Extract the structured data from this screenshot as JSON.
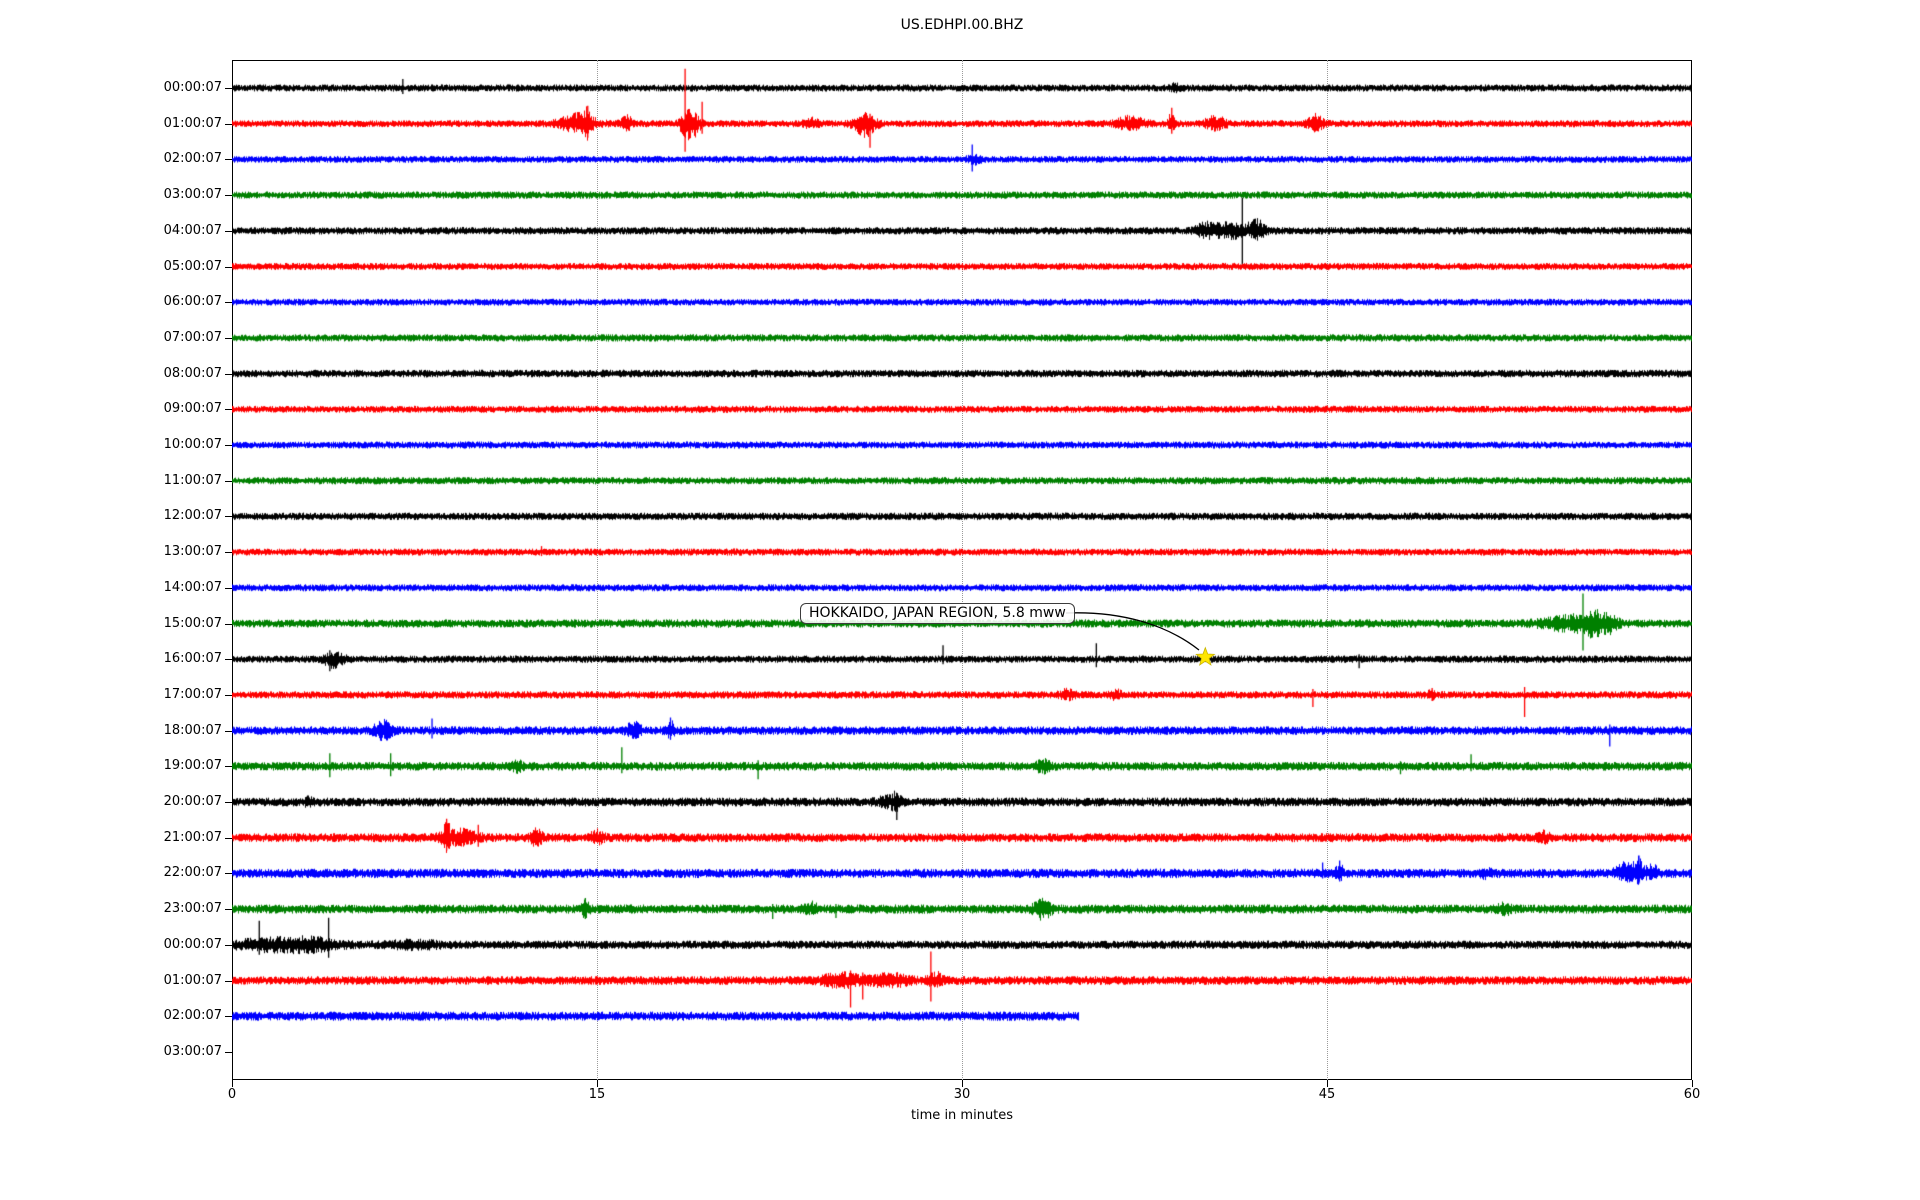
{
  "title": "US.EDHPI.00.BHZ",
  "annotation": {
    "text": "HOKKAIDO, JAPAN REGION, 5.8 mww"
  },
  "chart_data": {
    "type": "line",
    "subtype": "helicorder-seismogram",
    "title": "US.EDHPI.00.BHZ",
    "xlabel": "time in minutes",
    "x_ticks": [
      0,
      15,
      30,
      45,
      60
    ],
    "x_range_minutes": [
      0,
      60
    ],
    "grid_minutes": [
      15,
      30,
      45
    ],
    "grid_style": "dotted-vertical",
    "trace_color_cycle": [
      "#000000",
      "#ff0000",
      "#0000ff",
      "#008000"
    ],
    "event_marker": {
      "row_label": "16:00:07",
      "minute": 40.0,
      "symbol": "star",
      "color": "#ffe600",
      "outline": "#c8b400",
      "label": "HOKKAIDO, JAPAN REGION, 5.8 mww"
    },
    "rows": [
      {
        "label": "00:00:07",
        "color": "#000000",
        "base": 3.4,
        "events": [
          {
            "t": 7.0,
            "up": 9,
            "down": 6,
            "w": 0.05,
            "spike": true
          },
          {
            "t": 38.7,
            "up": 5,
            "down": 4,
            "w": 0.15
          }
        ]
      },
      {
        "label": "01:00:07",
        "color": "#ff0000",
        "base": 3.4,
        "events": [
          {
            "t": 14.2,
            "up": 14,
            "down": 12,
            "w": 0.5
          },
          {
            "t": 14.6,
            "up": 18,
            "down": 14,
            "w": 0.1,
            "spike": true
          },
          {
            "t": 16.2,
            "up": 12,
            "down": 8,
            "w": 0.15
          },
          {
            "t": 18.6,
            "up": 55,
            "down": 28,
            "w": 0.08,
            "spike": true
          },
          {
            "t": 18.8,
            "up": 20,
            "down": 26,
            "w": 0.25
          },
          {
            "t": 19.3,
            "up": 22,
            "down": 10,
            "w": 0.06,
            "spike": true
          },
          {
            "t": 23.8,
            "up": 7,
            "down": 5,
            "w": 0.2
          },
          {
            "t": 26.0,
            "up": 14,
            "down": 20,
            "w": 0.3
          },
          {
            "t": 26.2,
            "up": 10,
            "down": 24,
            "w": 0.05,
            "spike": true
          },
          {
            "t": 36.9,
            "up": 10,
            "down": 8,
            "w": 0.4
          },
          {
            "t": 38.6,
            "up": 16,
            "down": 10,
            "w": 0.1,
            "spike": true
          },
          {
            "t": 40.4,
            "up": 10,
            "down": 8,
            "w": 0.3
          },
          {
            "t": 44.5,
            "up": 12,
            "down": 9,
            "w": 0.25
          }
        ]
      },
      {
        "label": "02:00:07",
        "color": "#0000ff",
        "base": 3.3,
        "events": [
          {
            "t": 30.4,
            "up": 15,
            "down": 12,
            "w": 0.05,
            "spike": true
          },
          {
            "t": 30.5,
            "up": 5,
            "down": 5,
            "w": 0.2
          }
        ]
      },
      {
        "label": "03:00:07",
        "color": "#008000",
        "base": 3.5,
        "events": []
      },
      {
        "label": "04:00:07",
        "color": "#000000",
        "base": 3.6,
        "events": [
          {
            "t": 40.0,
            "up": 10,
            "down": 8,
            "w": 0.3
          },
          {
            "t": 41.0,
            "up": 12,
            "down": 10,
            "w": 0.5
          },
          {
            "t": 41.5,
            "up": 33,
            "down": 35,
            "w": 0.07,
            "spike": true
          },
          {
            "t": 42.1,
            "up": 14,
            "down": 10,
            "w": 0.25
          }
        ]
      },
      {
        "label": "05:00:07",
        "color": "#ff0000",
        "base": 3.4,
        "events": []
      },
      {
        "label": "06:00:07",
        "color": "#0000ff",
        "base": 3.3,
        "events": []
      },
      {
        "label": "07:00:07",
        "color": "#008000",
        "base": 3.5,
        "events": []
      },
      {
        "label": "08:00:07",
        "color": "#000000",
        "base": 3.7,
        "events": []
      },
      {
        "label": "09:00:07",
        "color": "#ff0000",
        "base": 3.4,
        "events": []
      },
      {
        "label": "10:00:07",
        "color": "#0000ff",
        "base": 3.4,
        "events": []
      },
      {
        "label": "11:00:07",
        "color": "#008000",
        "base": 3.5,
        "events": []
      },
      {
        "label": "12:00:07",
        "color": "#000000",
        "base": 3.6,
        "events": []
      },
      {
        "label": "13:00:07",
        "color": "#ff0000",
        "base": 3.4,
        "events": [
          {
            "t": 12.7,
            "up": 6,
            "down": 4,
            "w": 0.08,
            "spike": true
          }
        ]
      },
      {
        "label": "14:00:07",
        "color": "#0000ff",
        "base": 3.4,
        "events": []
      },
      {
        "label": "15:00:07",
        "color": "#008000",
        "base": 4.0,
        "events": [
          {
            "t": 55.0,
            "up": 10,
            "down": 10,
            "w": 0.8
          },
          {
            "t": 55.5,
            "up": 30,
            "down": 27,
            "w": 0.06,
            "spike": true
          },
          {
            "t": 55.9,
            "up": 16,
            "down": 14,
            "w": 0.3
          },
          {
            "t": 56.6,
            "up": 10,
            "down": 12,
            "w": 0.25
          }
        ]
      },
      {
        "label": "16:00:07",
        "color": "#000000",
        "base": 3.5,
        "events": [
          {
            "t": 4.0,
            "up": 9,
            "down": 12,
            "w": 0.05,
            "spike": true
          },
          {
            "t": 4.2,
            "up": 8,
            "down": 11,
            "w": 0.3
          },
          {
            "t": 29.2,
            "up": 14,
            "down": 5,
            "w": 0.05,
            "spike": true
          },
          {
            "t": 35.5,
            "up": 16,
            "down": 8,
            "w": 0.05,
            "spike": true
          },
          {
            "t": 46.3,
            "up": 5,
            "down": 9,
            "w": 0.06,
            "spike": true
          }
        ]
      },
      {
        "label": "17:00:07",
        "color": "#ff0000",
        "base": 3.6,
        "events": [
          {
            "t": 34.3,
            "up": 7,
            "down": 5,
            "w": 0.2
          },
          {
            "t": 36.3,
            "up": 6,
            "down": 5,
            "w": 0.15
          },
          {
            "t": 44.4,
            "up": 6,
            "down": 12,
            "w": 0.06,
            "spike": true
          },
          {
            "t": 49.3,
            "up": 7,
            "down": 6,
            "w": 0.1,
            "spike": true
          },
          {
            "t": 53.1,
            "up": 8,
            "down": 22,
            "w": 0.06,
            "spike": true
          }
        ]
      },
      {
        "label": "18:00:07",
        "color": "#0000ff",
        "base": 4.2,
        "events": [
          {
            "t": 6.2,
            "up": 13,
            "down": 12,
            "w": 0.25
          },
          {
            "t": 8.2,
            "up": 12,
            "down": 8,
            "w": 0.08,
            "spike": true
          },
          {
            "t": 16.5,
            "up": 11,
            "down": 8,
            "w": 0.2
          },
          {
            "t": 18.0,
            "up": 13,
            "down": 9,
            "w": 0.12,
            "spike": true
          },
          {
            "t": 56.6,
            "up": 6,
            "down": 16,
            "w": 0.06,
            "spike": true
          }
        ]
      },
      {
        "label": "19:00:07",
        "color": "#008000",
        "base": 4.2,
        "events": [
          {
            "t": 4.0,
            "up": 13,
            "down": 11,
            "w": 0.07,
            "spike": true
          },
          {
            "t": 6.5,
            "up": 13,
            "down": 10,
            "w": 0.07,
            "spike": true
          },
          {
            "t": 11.7,
            "up": 8,
            "down": 6,
            "w": 0.15
          },
          {
            "t": 16.0,
            "up": 19,
            "down": 7,
            "w": 0.05,
            "spike": true
          },
          {
            "t": 21.6,
            "up": 6,
            "down": 13,
            "w": 0.06,
            "spike": true
          },
          {
            "t": 33.3,
            "up": 8,
            "down": 7,
            "w": 0.2
          },
          {
            "t": 48.0,
            "up": 5,
            "down": 8,
            "w": 0.06,
            "spike": true
          },
          {
            "t": 50.9,
            "up": 12,
            "down": 5,
            "w": 0.05,
            "spike": true
          }
        ]
      },
      {
        "label": "20:00:07",
        "color": "#000000",
        "base": 4.3,
        "events": [
          {
            "t": 3.1,
            "up": 7,
            "down": 5,
            "w": 0.1
          },
          {
            "t": 27.0,
            "up": 8,
            "down": 6,
            "w": 0.3
          },
          {
            "t": 27.3,
            "up": 9,
            "down": 18,
            "w": 0.1,
            "spike": true
          }
        ]
      },
      {
        "label": "21:00:07",
        "color": "#ff0000",
        "base": 4.3,
        "events": [
          {
            "t": 8.8,
            "up": 19,
            "down": 13,
            "w": 0.1,
            "spike": true
          },
          {
            "t": 9.3,
            "up": 10,
            "down": 8,
            "w": 0.5
          },
          {
            "t": 10.1,
            "up": 13,
            "down": 9,
            "w": 0.08,
            "spike": true
          },
          {
            "t": 12.5,
            "up": 15,
            "down": 11,
            "w": 0.15
          },
          {
            "t": 15.0,
            "up": 8,
            "down": 6,
            "w": 0.2
          },
          {
            "t": 53.9,
            "up": 7,
            "down": 5,
            "w": 0.15
          }
        ]
      },
      {
        "label": "22:00:07",
        "color": "#0000ff",
        "base": 4.5,
        "events": [
          {
            "t": 44.8,
            "up": 11,
            "down": 5,
            "w": 0.06,
            "spike": true
          },
          {
            "t": 45.5,
            "up": 13,
            "down": 8,
            "w": 0.1,
            "spike": true
          },
          {
            "t": 51.5,
            "up": 6,
            "down": 5,
            "w": 0.15
          },
          {
            "t": 57.3,
            "up": 16,
            "down": 8,
            "w": 0.3
          },
          {
            "t": 57.8,
            "up": 18,
            "down": 10,
            "w": 0.12,
            "spike": true
          },
          {
            "t": 58.3,
            "up": 12,
            "down": 6,
            "w": 0.2
          }
        ]
      },
      {
        "label": "23:00:07",
        "color": "#008000",
        "base": 4.4,
        "events": [
          {
            "t": 14.5,
            "up": 11,
            "down": 10,
            "w": 0.1,
            "spike": true
          },
          {
            "t": 22.2,
            "up": 5,
            "down": 10,
            "w": 0.06,
            "spike": true
          },
          {
            "t": 23.8,
            "up": 7,
            "down": 5,
            "w": 0.2
          },
          {
            "t": 24.8,
            "up": 5,
            "down": 9,
            "w": 0.06,
            "spike": true
          },
          {
            "t": 33.3,
            "up": 12,
            "down": 13,
            "w": 0.25
          },
          {
            "t": 52.3,
            "up": 6,
            "down": 5,
            "w": 0.2
          }
        ]
      },
      {
        "label": "00:00:07",
        "color": "#000000",
        "base": 4.0,
        "events": [
          {
            "t": 1.1,
            "up": 24,
            "down": 10,
            "w": 0.06,
            "spike": true
          },
          {
            "t": 1.6,
            "up": 7,
            "down": 7,
            "w": 1.2
          },
          {
            "t": 3.3,
            "up": 6,
            "down": 6,
            "w": 0.8
          },
          {
            "t": 3.95,
            "up": 27,
            "down": 13,
            "w": 0.06,
            "spike": true
          },
          {
            "t": 7.5,
            "up": 4,
            "down": 4,
            "w": 0.7
          }
        ]
      },
      {
        "label": "01:00:07",
        "color": "#ff0000",
        "base": 4.2,
        "events": [
          {
            "t": 25.0,
            "up": 9,
            "down": 8,
            "w": 0.5
          },
          {
            "t": 25.4,
            "up": 10,
            "down": 27,
            "w": 0.06,
            "spike": true
          },
          {
            "t": 25.9,
            "up": 8,
            "down": 19,
            "w": 0.06,
            "spike": true
          },
          {
            "t": 27.0,
            "up": 8,
            "down": 7,
            "w": 0.6
          },
          {
            "t": 28.7,
            "up": 29,
            "down": 21,
            "w": 0.07,
            "spike": true
          },
          {
            "t": 28.9,
            "up": 10,
            "down": 8,
            "w": 0.2
          }
        ]
      },
      {
        "label": "02:00:07",
        "color": "#0000ff",
        "base": 4.4,
        "end_minute": 34.8,
        "events": []
      },
      {
        "label": "03:00:07",
        "color": "#008000",
        "base": 0,
        "empty": true,
        "events": []
      }
    ]
  }
}
